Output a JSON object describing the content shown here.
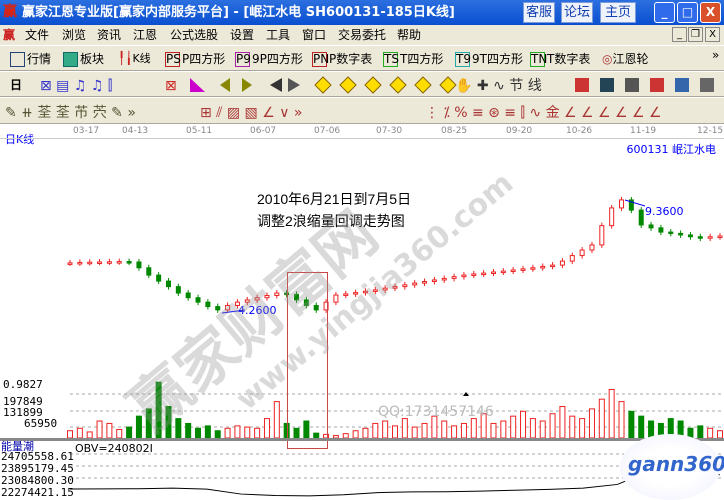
{
  "title": {
    "logo": "赢",
    "text": "赢家江恩专业版[赢家内部服务平台] - [岷江水电   SH600131-185日K线]",
    "buttons": [
      "客服",
      "论坛",
      "主页"
    ],
    "win": [
      "_",
      "□",
      "X"
    ]
  },
  "menu": {
    "logo": "赢",
    "items": [
      "文件",
      "浏览",
      "资讯",
      "江恩",
      "公式选股",
      "设置",
      "工具",
      "窗口",
      "交易委托",
      "帮助"
    ],
    "win": [
      "_",
      "❐",
      "X"
    ]
  },
  "toolbar1": [
    {
      "icon": "PS",
      "label": "P四方形"
    },
    {
      "icon": "P9",
      "label": "9P四方形"
    },
    {
      "icon": "PN",
      "label": "P数字表"
    },
    {
      "icon": "TS",
      "label": "T四方形"
    },
    {
      "icon": "T9",
      "label": "9T四方形"
    },
    {
      "icon": "TN",
      "label": "T数字表"
    }
  ],
  "toolbar1_extra": {
    "quotes": "行情",
    "sectors": "板块",
    "kline": "K线",
    "wheel": "江恩轮",
    "more": "»"
  },
  "toolbar2": {
    "period": "日"
  },
  "chart": {
    "period_label": "日K线",
    "stock": "600131  岷江水电",
    "dates": [
      "03-17",
      "04-13",
      "05-11",
      "06-07",
      "07-06",
      "07-30",
      "08-25",
      "09-20",
      "10-26",
      "11-19",
      "12-15"
    ],
    "annotation_line1": "2010年6月21日到7月5日",
    "annotation_line2": "调整2浪缩量回调走势图",
    "low_label": "4.2600",
    "high_label": "9.3600",
    "qq": "QQ:1731457146",
    "watermark1": "赢家财富网",
    "watermark2": "www.yingjia360.com",
    "logo": "gann360"
  },
  "chart_data": {
    "type": "candlestick",
    "closes": [
      6.52,
      6.54,
      6.55,
      6.56,
      6.57,
      6.58,
      6.56,
      6.3,
      5.97,
      5.7,
      5.45,
      5.16,
      4.95,
      4.75,
      4.55,
      4.4,
      4.6,
      4.75,
      4.85,
      4.95,
      5.05,
      5.16,
      5.1,
      4.85,
      4.6,
      4.4,
      4.75,
      5.07,
      5.12,
      5.18,
      5.24,
      5.3,
      5.38,
      5.45,
      5.53,
      5.61,
      5.68,
      5.75,
      5.82,
      5.9,
      5.97,
      6.02,
      6.06,
      6.11,
      6.15,
      6.2,
      6.25,
      6.3,
      6.36,
      6.42,
      6.6,
      6.85,
      7.1,
      7.33,
      8.2,
      9.0,
      9.36,
      8.9,
      8.23,
      8.1,
      7.91,
      7.85,
      7.78,
      7.7,
      7.64,
      7.7,
      7.73
    ],
    "low": 4.26,
    "high": 9.36,
    "volume": {
      "ticks": [
        "0.9827",
        "197849",
        "131899",
        "65950"
      ],
      "values": [
        30000,
        40000,
        25000,
        70000,
        60000,
        35000,
        45000,
        90000,
        120000,
        230000,
        130000,
        80000,
        60000,
        40000,
        50000,
        30000,
        40000,
        50000,
        45000,
        40000,
        80000,
        150000,
        60000,
        40000,
        70000,
        20000,
        15000,
        10000,
        18000,
        30000,
        40000,
        60000,
        70000,
        50000,
        80000,
        45000,
        60000,
        90000,
        70000,
        50000,
        60000,
        80000,
        100000,
        60000,
        70000,
        90000,
        110000,
        80000,
        70000,
        100000,
        130000,
        90000,
        80000,
        120000,
        160000,
        200000,
        150000,
        110000,
        90000,
        70000,
        60000,
        80000,
        70000,
        40000,
        50000,
        40000,
        30000
      ]
    },
    "obv": {
      "title": "能量潮",
      "label": "OBV=240802I",
      "ticks": [
        "24705558.61",
        "23895179.45",
        "23084800.30",
        "22274421.15"
      ],
      "values": [
        22341953,
        22350000,
        22360000,
        22400000,
        22330000,
        22000000,
        21900000,
        21880000,
        21950000,
        22100000,
        22150000,
        22160000,
        22200000,
        22260000,
        22320000,
        22400000,
        22650000,
        23600000,
        23500000,
        23300000
      ]
    }
  }
}
